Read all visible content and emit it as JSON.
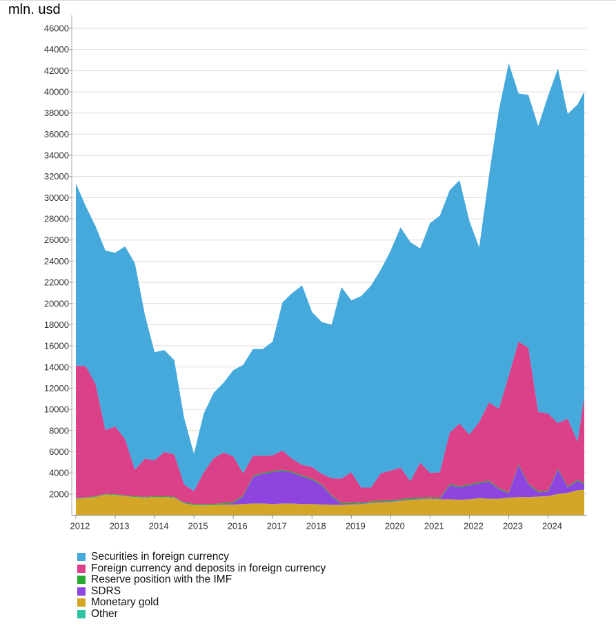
{
  "chart_data": {
    "type": "area",
    "stacked": true,
    "ylabel": "mln. usd",
    "ylim": [
      0,
      47000
    ],
    "yticks": [
      2000,
      4000,
      6000,
      8000,
      10000,
      12000,
      14000,
      16000,
      18000,
      20000,
      22000,
      24000,
      26000,
      28000,
      30000,
      32000,
      34000,
      36000,
      38000,
      40000,
      42000,
      44000,
      46000
    ],
    "xlim": [
      2012.0,
      2024.92
    ],
    "xticks": [
      2012,
      2013,
      2014,
      2015,
      2016,
      2017,
      2018,
      2019,
      2020,
      2021,
      2022,
      2023,
      2024
    ],
    "grid": true,
    "legend_position": "bottom-left",
    "x": [
      2012.0,
      2012.25,
      2012.5,
      2012.75,
      2013.0,
      2013.25,
      2013.5,
      2013.75,
      2014.0,
      2014.25,
      2014.5,
      2014.75,
      2015.0,
      2015.25,
      2015.5,
      2015.75,
      2016.0,
      2016.25,
      2016.5,
      2016.75,
      2017.0,
      2017.25,
      2017.5,
      2017.75,
      2018.0,
      2018.25,
      2018.5,
      2018.75,
      2019.0,
      2019.25,
      2019.5,
      2019.75,
      2020.0,
      2020.25,
      2020.5,
      2020.75,
      2021.0,
      2021.25,
      2021.5,
      2021.75,
      2022.0,
      2022.25,
      2022.5,
      2022.75,
      2023.0,
      2023.25,
      2023.5,
      2023.75,
      2024.0,
      2024.25,
      2024.5,
      2024.75,
      2024.92
    ],
    "series": [
      {
        "name": "Monetary gold",
        "color": "#d4a628",
        "values": [
          1550,
          1600,
          1700,
          1950,
          1900,
          1800,
          1700,
          1650,
          1700,
          1700,
          1650,
          1100,
          950,
          920,
          950,
          980,
          1000,
          1050,
          1100,
          1100,
          1050,
          1100,
          1100,
          1050,
          1050,
          1000,
          980,
          950,
          1000,
          1050,
          1150,
          1200,
          1250,
          1350,
          1450,
          1500,
          1550,
          1500,
          1500,
          1450,
          1500,
          1600,
          1550,
          1550,
          1650,
          1700,
          1700,
          1750,
          1800,
          2000,
          2100,
          2350,
          2400
        ]
      },
      {
        "name": "Other",
        "color": "#2ec4a5",
        "values": [
          10,
          10,
          10,
          10,
          10,
          10,
          10,
          10,
          10,
          10,
          10,
          10,
          10,
          10,
          10,
          10,
          10,
          10,
          10,
          10,
          10,
          10,
          10,
          10,
          10,
          10,
          10,
          10,
          10,
          10,
          10,
          10,
          10,
          10,
          10,
          10,
          10,
          10,
          10,
          10,
          10,
          10,
          10,
          10,
          10,
          10,
          10,
          10,
          10,
          10,
          10,
          10,
          10
        ]
      },
      {
        "name": "SDRS",
        "color": "#8e45e0",
        "values": [
          20,
          20,
          20,
          20,
          20,
          20,
          20,
          20,
          20,
          20,
          20,
          20,
          20,
          20,
          20,
          40,
          150,
          700,
          2500,
          2800,
          3000,
          3100,
          2900,
          2600,
          2300,
          1800,
          800,
          100,
          50,
          50,
          50,
          50,
          50,
          50,
          50,
          50,
          50,
          50,
          1300,
          1200,
          1300,
          1400,
          1600,
          900,
          400,
          3000,
          1200,
          400,
          400,
          2300,
          500,
          900,
          500
        ]
      },
      {
        "name": "Reserve position with the IMF",
        "color": "#2aa834",
        "values": [
          60,
          60,
          60,
          60,
          60,
          60,
          60,
          60,
          60,
          60,
          60,
          80,
          100,
          100,
          100,
          100,
          100,
          100,
          100,
          100,
          100,
          100,
          100,
          100,
          100,
          100,
          100,
          100,
          100,
          100,
          100,
          100,
          100,
          100,
          100,
          100,
          100,
          100,
          100,
          100,
          100,
          100,
          100,
          100,
          100,
          100,
          100,
          100,
          100,
          100,
          100,
          100,
          100
        ]
      },
      {
        "name": "Foreign currency and deposits in foreign currency",
        "color": "#da4189",
        "values": [
          12500,
          12400,
          10600,
          6000,
          6400,
          5300,
          2500,
          3600,
          3400,
          4200,
          4000,
          1700,
          1200,
          3000,
          4300,
          4800,
          4300,
          2100,
          1900,
          1600,
          1500,
          1800,
          1200,
          1000,
          1100,
          1000,
          1600,
          2300,
          2900,
          1400,
          1300,
          2600,
          2800,
          3000,
          1600,
          3300,
          2300,
          2400,
          4900,
          5900,
          4700,
          5700,
          7400,
          7500,
          11000,
          11600,
          12800,
          7500,
          7300,
          4300,
          6400,
          3600,
          8200
        ]
      },
      {
        "name": "Securities in foreign currency",
        "color": "#45a9db",
        "values": [
          17210,
          15110,
          14910,
          16960,
          16410,
          18210,
          19510,
          13660,
          10210,
          9610,
          8910,
          6290,
          3530,
          5560,
          6180,
          6570,
          8140,
          10240,
          10090,
          10090,
          10740,
          13990,
          15690,
          16950,
          14640,
          14340,
          14510,
          18100,
          16240,
          18090,
          19090,
          19240,
          20790,
          22690,
          22590,
          20240,
          23590,
          24240,
          22890,
          22990,
          20200,
          16490,
          21440,
          28240,
          29540,
          23440,
          23890,
          27000,
          30000,
          33500,
          28800,
          31850,
          28800
        ]
      }
    ]
  }
}
